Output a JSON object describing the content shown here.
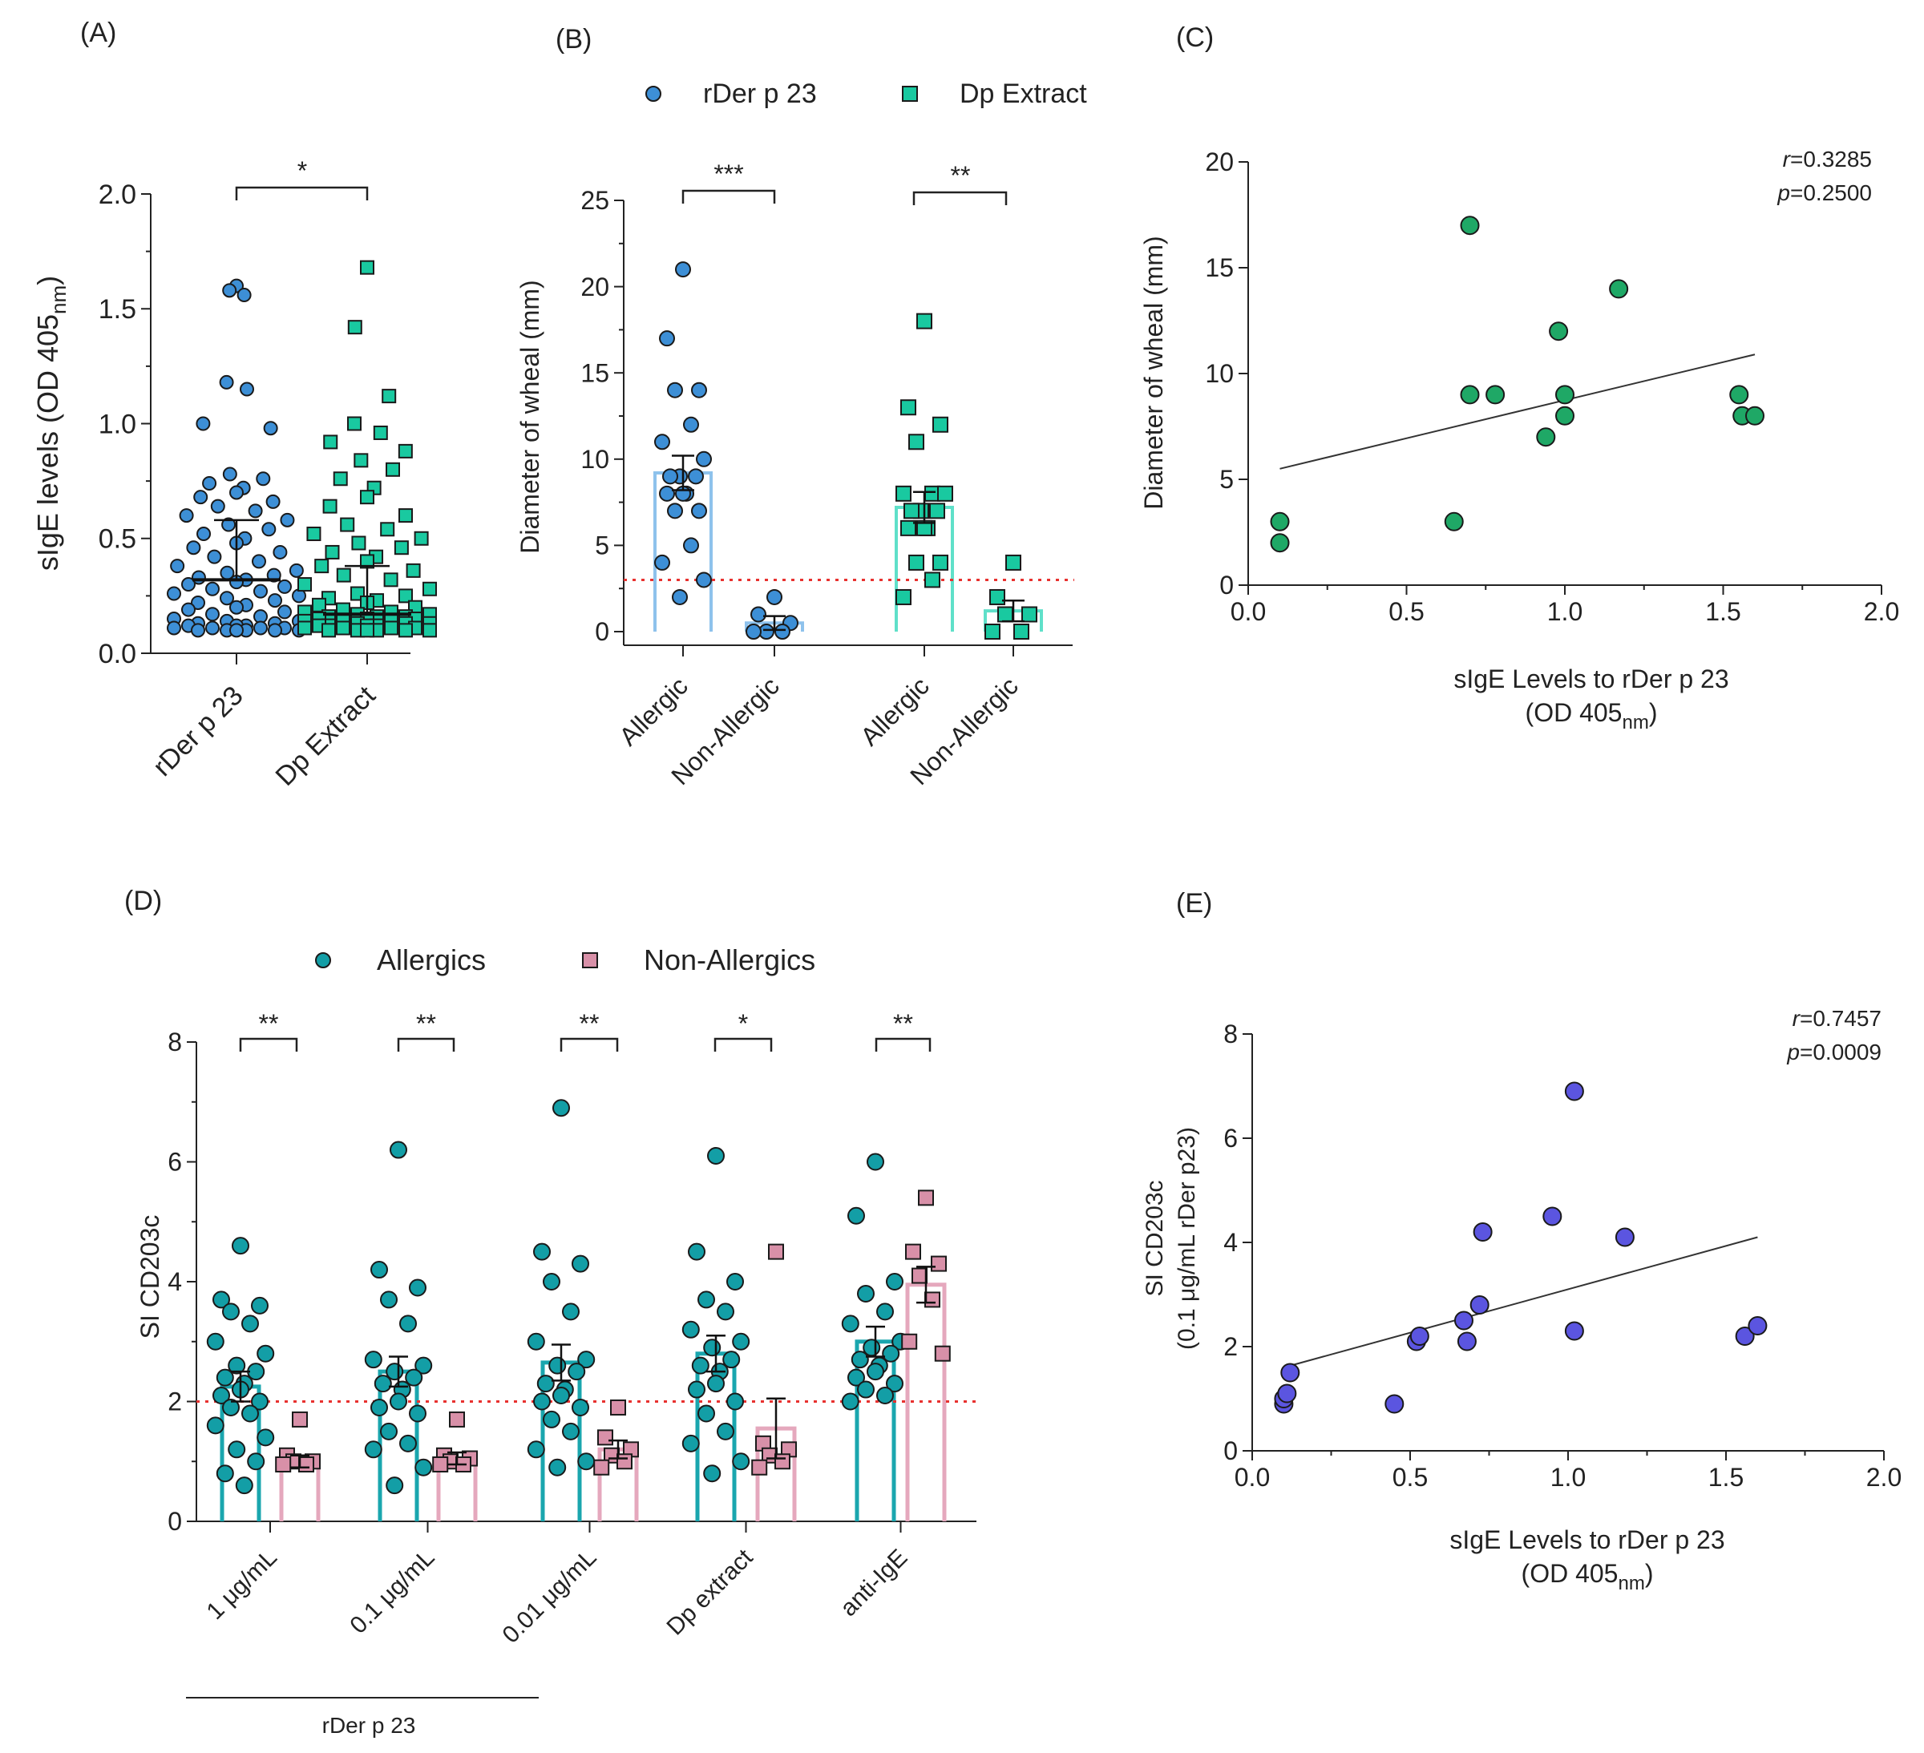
{
  "chart_data": [
    {
      "panel": "A",
      "label": "(A)",
      "type": "scatter",
      "ylabel_main": "sIgE levels (OD 405",
      "ylabel_sub": "nm",
      "ylabel_close": ")",
      "ylim": [
        0,
        2.0
      ],
      "yticks": [
        "0.0",
        "0.5",
        "1.0",
        "1.5",
        "2.0"
      ],
      "categories": [
        "rDer p 23",
        "Dp Extract"
      ],
      "sig": "*",
      "series": [
        {
          "name": "rDer p 23",
          "color": "#3d8fd6",
          "marker": "circle",
          "median": 0.32,
          "q3": 0.58,
          "values": [
            1.6,
            1.58,
            1.56,
            1.18,
            1.15,
            1.0,
            0.98,
            0.78,
            0.76,
            0.74,
            0.72,
            0.7,
            0.68,
            0.66,
            0.64,
            0.62,
            0.6,
            0.58,
            0.56,
            0.54,
            0.52,
            0.5,
            0.48,
            0.46,
            0.44,
            0.42,
            0.4,
            0.38,
            0.36,
            0.35,
            0.34,
            0.33,
            0.32,
            0.31,
            0.3,
            0.29,
            0.28,
            0.27,
            0.26,
            0.25,
            0.24,
            0.23,
            0.22,
            0.21,
            0.2,
            0.19,
            0.18,
            0.17,
            0.16,
            0.15,
            0.14,
            0.14,
            0.13,
            0.13,
            0.12,
            0.12,
            0.12,
            0.11,
            0.11,
            0.11,
            0.11,
            0.1,
            0.1,
            0.1,
            0.1,
            0.1,
            0.1
          ]
        },
        {
          "name": "Dp Extract",
          "color": "#19c9a0",
          "marker": "square",
          "median": 0.17,
          "q3": 0.38,
          "values": [
            1.68,
            1.42,
            1.12,
            1.0,
            0.96,
            0.92,
            0.88,
            0.84,
            0.8,
            0.76,
            0.72,
            0.68,
            0.64,
            0.6,
            0.56,
            0.54,
            0.52,
            0.5,
            0.48,
            0.46,
            0.44,
            0.42,
            0.4,
            0.38,
            0.36,
            0.34,
            0.32,
            0.3,
            0.28,
            0.26,
            0.25,
            0.24,
            0.23,
            0.22,
            0.21,
            0.2,
            0.19,
            0.18,
            0.18,
            0.17,
            0.17,
            0.16,
            0.16,
            0.16,
            0.15,
            0.15,
            0.15,
            0.14,
            0.14,
            0.14,
            0.13,
            0.13,
            0.13,
            0.12,
            0.12,
            0.12,
            0.12,
            0.11,
            0.11,
            0.11,
            0.11,
            0.1,
            0.1,
            0.1,
            0.1,
            0.1,
            0.1
          ]
        }
      ]
    },
    {
      "panel": "B",
      "label": "(B)",
      "type": "bar",
      "ylabel": "Diameter of wheal (mm)",
      "ylim": [
        0,
        25
      ],
      "yticks": [
        "0",
        "5",
        "10",
        "15",
        "20",
        "25"
      ],
      "threshold": 3,
      "legend": [
        {
          "name": "rDer p 23",
          "color": "#3d8fd6",
          "marker": "circle"
        },
        {
          "name": "Dp Extract",
          "color": "#19c9a0",
          "marker": "square"
        }
      ],
      "groups": [
        {
          "category": "Allergic",
          "series": "rDer p 23",
          "mean": 9.2,
          "sem": 1.0,
          "color": "#3d8fd6",
          "bar_color": "#8ec2ec",
          "marker": "circle",
          "values": [
            21,
            17,
            14,
            14,
            12,
            11,
            10,
            9,
            9,
            9,
            8,
            8,
            8,
            7,
            7,
            5,
            4,
            3,
            2
          ]
        },
        {
          "category": "Non-Allergic",
          "series": "rDer p 23",
          "mean": 0.5,
          "sem": 0.4,
          "color": "#3d8fd6",
          "bar_color": "#8ec2ec",
          "marker": "circle",
          "values": [
            2,
            1,
            0.5,
            0,
            0,
            0
          ]
        },
        {
          "category": "Allergic",
          "series": "Dp Extract",
          "mean": 7.2,
          "sem": 0.9,
          "color": "#19c9a0",
          "bar_color": "#5fe0c9",
          "marker": "square",
          "values": [
            18,
            13,
            12,
            11,
            8,
            8,
            8,
            7,
            7,
            7,
            6,
            6,
            6,
            4,
            4,
            3,
            2
          ]
        },
        {
          "category": "Non-Allergic",
          "series": "Dp Extract",
          "mean": 1.2,
          "sem": 0.6,
          "color": "#19c9a0",
          "bar_color": "#5fe0c9",
          "marker": "square",
          "values": [
            4,
            2,
            1,
            1,
            0,
            0
          ]
        }
      ],
      "sig": [
        "***",
        "**"
      ]
    },
    {
      "panel": "C",
      "label": "(C)",
      "type": "scatter",
      "xlabel_line1": "sIgE Levels to rDer p 23",
      "xlabel_line2_main": "(OD 405",
      "xlabel_line2_sub": "nm",
      "xlabel_line2_close": ")",
      "ylabel": "Diameter of wheal (mm)",
      "xlim": [
        0,
        2.0
      ],
      "ylim": [
        0,
        20
      ],
      "xticks": [
        "0.0",
        "0.5",
        "1.0",
        "1.5",
        "2.0"
      ],
      "yticks": [
        "0",
        "5",
        "10",
        "15",
        "20"
      ],
      "color": "#1fa866",
      "points": [
        [
          0.1,
          3
        ],
        [
          0.1,
          2
        ],
        [
          0.65,
          3
        ],
        [
          0.7,
          17
        ],
        [
          0.7,
          9
        ],
        [
          0.78,
          9
        ],
        [
          0.94,
          7
        ],
        [
          0.98,
          12
        ],
        [
          1.0,
          9
        ],
        [
          1.0,
          8
        ],
        [
          1.17,
          14
        ],
        [
          1.55,
          9
        ],
        [
          1.56,
          8
        ],
        [
          1.6,
          8
        ]
      ],
      "fit": [
        [
          0.1,
          5.5
        ],
        [
          1.6,
          10.9
        ]
      ],
      "r_label": "r",
      "r_value": "=0.3285",
      "p_label": "p",
      "p_value": "=0.2500"
    },
    {
      "panel": "D",
      "label": "(D)",
      "type": "bar",
      "ylabel": "SI CD203c",
      "ylim": [
        0,
        8
      ],
      "yticks": [
        "0",
        "2",
        "4",
        "6",
        "8"
      ],
      "threshold": 2,
      "legend": [
        {
          "name": "Allergics",
          "color": "#139ea6",
          "marker": "circle"
        },
        {
          "name": "Non-Allergics",
          "color": "#d890a8",
          "marker": "square"
        }
      ],
      "categories": [
        "1 μg/mL",
        "0.1 μg/mL",
        "0.01 μg/mL",
        "Dp extract",
        "anti-IgE"
      ],
      "group_label": "rDer p 23",
      "sig": [
        "**",
        "**",
        "**",
        "*",
        "**"
      ],
      "series": [
        {
          "name": "Allergics",
          "color": "#139ea6",
          "marker": "circle",
          "means": [
            2.25,
            2.5,
            2.65,
            2.8,
            3.0
          ],
          "sems": [
            0.25,
            0.25,
            0.3,
            0.3,
            0.25
          ],
          "values": [
            [
              4.6,
              3.7,
              3.6,
              3.5,
              3.3,
              3.0,
              2.8,
              2.6,
              2.5,
              2.4,
              2.3,
              2.2,
              2.1,
              2.0,
              1.9,
              1.8,
              1.6,
              1.4,
              1.2,
              1.0,
              0.8,
              0.6
            ],
            [
              6.2,
              4.2,
              3.9,
              3.7,
              3.3,
              2.7,
              2.6,
              2.5,
              2.4,
              2.3,
              2.2,
              2.0,
              1.9,
              1.8,
              1.5,
              1.3,
              1.2,
              0.9,
              0.6
            ],
            [
              6.9,
              4.5,
              4.3,
              4.0,
              3.5,
              3.0,
              2.7,
              2.6,
              2.5,
              2.3,
              2.2,
              2.1,
              2.0,
              1.9,
              1.7,
              1.5,
              1.2,
              1.0,
              0.9
            ],
            [
              6.1,
              4.5,
              4.0,
              3.7,
              3.5,
              3.2,
              3.0,
              2.9,
              2.7,
              2.6,
              2.5,
              2.3,
              2.2,
              2.0,
              1.8,
              1.5,
              1.3,
              1.0,
              0.8
            ],
            [
              6.0,
              5.1,
              4.0,
              3.8,
              3.5,
              3.3,
              3.0,
              2.9,
              2.8,
              2.7,
              2.6,
              2.5,
              2.4,
              2.3,
              2.2,
              2.1,
              2.0
            ]
          ]
        },
        {
          "name": "Non-Allergics",
          "color": "#d890a8",
          "marker": "square",
          "means": [
            1.0,
            1.05,
            1.2,
            1.55,
            3.95
          ],
          "sems": [
            0.1,
            0.1,
            0.15,
            0.5,
            0.3
          ],
          "values": [
            [
              1.7,
              1.1,
              1.0,
              1.0,
              0.95,
              0.95
            ],
            [
              1.7,
              1.1,
              1.05,
              1.0,
              0.95,
              0.95
            ],
            [
              1.9,
              1.4,
              1.2,
              1.1,
              1.0,
              0.9
            ],
            [
              4.5,
              1.3,
              1.2,
              1.1,
              1.0,
              0.9
            ],
            [
              5.4,
              4.5,
              4.3,
              4.1,
              3.7,
              3.0,
              2.8
            ]
          ]
        }
      ]
    },
    {
      "panel": "E",
      "label": "(E)",
      "type": "scatter",
      "xlabel_line1": "sIgE Levels to rDer p 23",
      "xlabel_line2_main": "(OD 405",
      "xlabel_line2_sub": "nm",
      "xlabel_line2_close": ")",
      "ylabel_line1": "SI CD203c",
      "ylabel_line2": "(0.1 μg/mL rDer p23)",
      "xlim": [
        0,
        2.0
      ],
      "ylim": [
        0,
        8
      ],
      "xticks": [
        "0.0",
        "0.5",
        "1.0",
        "1.5",
        "2.0"
      ],
      "yticks": [
        "0",
        "2",
        "4",
        "6",
        "8"
      ],
      "color": "#5b55e0",
      "points": [
        [
          0.1,
          0.9
        ],
        [
          0.1,
          1.0
        ],
        [
          0.11,
          1.1
        ],
        [
          0.12,
          1.5
        ],
        [
          0.45,
          0.9
        ],
        [
          0.52,
          2.1
        ],
        [
          0.53,
          2.2
        ],
        [
          0.67,
          2.5
        ],
        [
          0.68,
          2.1
        ],
        [
          0.72,
          2.8
        ],
        [
          0.73,
          4.2
        ],
        [
          0.95,
          4.5
        ],
        [
          1.02,
          6.9
        ],
        [
          1.02,
          2.3
        ],
        [
          1.18,
          4.1
        ],
        [
          1.56,
          2.2
        ],
        [
          1.6,
          2.4
        ]
      ],
      "fit": [
        [
          0.1,
          1.6
        ],
        [
          1.6,
          4.1
        ]
      ],
      "r_label": "r",
      "r_value": "=0.7457",
      "p_label": "p",
      "p_value": "=0.0009"
    }
  ]
}
